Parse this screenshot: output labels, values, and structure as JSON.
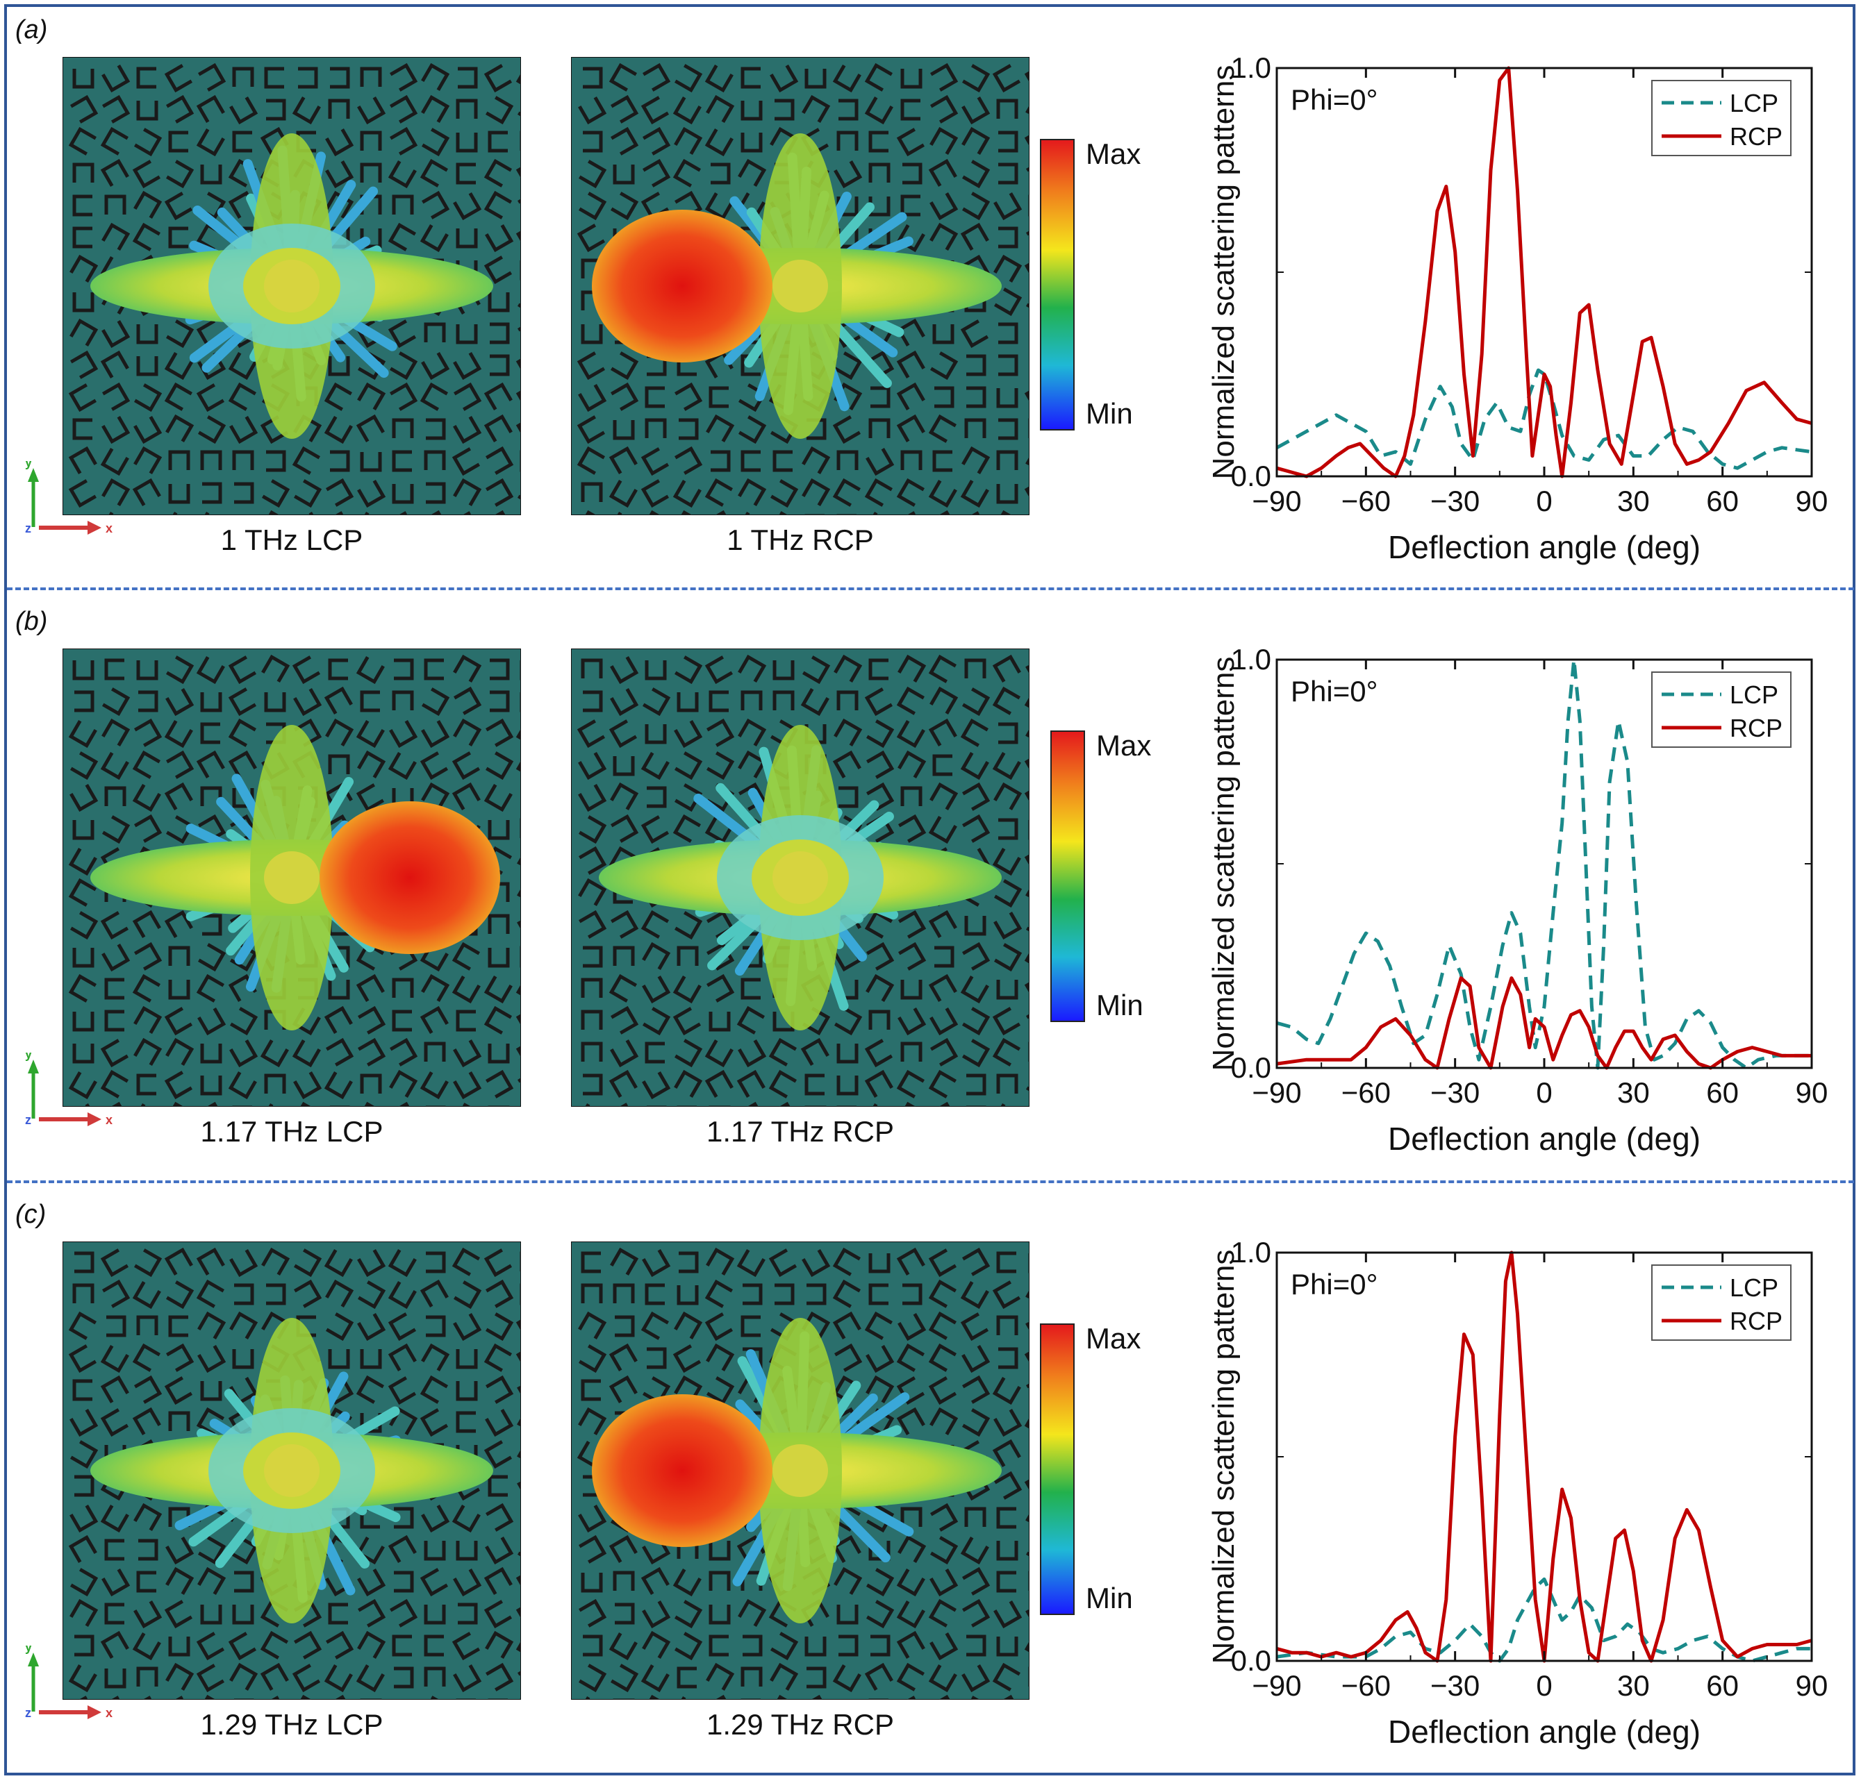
{
  "figure": {
    "panels": [
      {
        "label": "(a)",
        "captions": [
          "1 THz LCP",
          "1 THz RCP"
        ],
        "colorbar": {
          "max_label": "Max",
          "min_label": "Min"
        },
        "axis_triad": {
          "y": "y",
          "z": "z",
          "x": "x"
        }
      },
      {
        "label": "(b)",
        "captions": [
          "1.17 THz LCP",
          "1.17 THz RCP"
        ],
        "colorbar": {
          "max_label": "Max",
          "min_label": "Min"
        },
        "axis_triad": {
          "y": "y",
          "z": "z",
          "x": "x"
        }
      },
      {
        "label": "(c)",
        "captions": [
          "1.29 THz LCP",
          "1.29 THz RCP"
        ],
        "colorbar": {
          "max_label": "Max",
          "min_label": "Min"
        },
        "axis_triad": {
          "y": "y",
          "z": "z",
          "x": "x"
        }
      }
    ],
    "colors": {
      "lcp": "#1a8a8a",
      "rcp": "#c00000",
      "border": "#2f5597",
      "divider": "#4472c4",
      "substrate": "#2a6f6c"
    }
  },
  "chart_data": [
    {
      "type": "line",
      "annotation": "Phi=0°",
      "xlabel": "Deflection angle (deg)",
      "ylabel": "Normalized scattering patterns",
      "xlim": [
        -90,
        90
      ],
      "ylim": [
        0,
        1
      ],
      "xticks": [
        "−90",
        "−60",
        "−30",
        "0",
        "30",
        "60",
        "90"
      ],
      "yticks": [
        "0.0",
        "1.0"
      ],
      "legend": "top-right",
      "series": [
        {
          "name": "LCP",
          "style": "dashed",
          "x": [
            -90,
            -80,
            -70,
            -60,
            -55,
            -50,
            -45,
            -40,
            -35,
            -31,
            -28,
            -24,
            -20,
            -16,
            -12,
            -8,
            -5,
            -2,
            0,
            3,
            6,
            10,
            15,
            20,
            25,
            30,
            35,
            40,
            45,
            50,
            55,
            60,
            65,
            70,
            75,
            80,
            85,
            90
          ],
          "y": [
            0.07,
            0.11,
            0.15,
            0.11,
            0.05,
            0.06,
            0.03,
            0.14,
            0.22,
            0.17,
            0.08,
            0.04,
            0.14,
            0.18,
            0.12,
            0.11,
            0.2,
            0.26,
            0.25,
            0.18,
            0.1,
            0.05,
            0.04,
            0.09,
            0.1,
            0.05,
            0.05,
            0.09,
            0.12,
            0.11,
            0.06,
            0.03,
            0.02,
            0.04,
            0.06,
            0.07,
            0.065,
            0.06
          ]
        },
        {
          "name": "RCP",
          "style": "solid",
          "x": [
            -90,
            -85,
            -80,
            -75,
            -70,
            -66,
            -62,
            -58,
            -54,
            -50,
            -47,
            -44,
            -40,
            -36,
            -33,
            -30,
            -27,
            -24,
            -21,
            -18,
            -15,
            -12,
            -9,
            -6,
            -4,
            -2,
            0,
            2,
            4,
            6,
            9,
            12,
            15,
            18,
            22,
            26,
            30,
            33,
            36,
            40,
            44,
            48,
            52,
            56,
            62,
            68,
            74,
            80,
            85,
            90
          ],
          "y": [
            0.02,
            0.01,
            0.0,
            0.02,
            0.05,
            0.07,
            0.08,
            0.05,
            0.02,
            0.0,
            0.05,
            0.15,
            0.38,
            0.65,
            0.71,
            0.55,
            0.25,
            0.05,
            0.3,
            0.75,
            0.97,
            1.0,
            0.7,
            0.3,
            0.05,
            0.15,
            0.25,
            0.22,
            0.1,
            0.0,
            0.18,
            0.4,
            0.42,
            0.26,
            0.08,
            0.03,
            0.2,
            0.33,
            0.34,
            0.22,
            0.08,
            0.03,
            0.04,
            0.06,
            0.13,
            0.21,
            0.23,
            0.18,
            0.14,
            0.13
          ]
        }
      ]
    },
    {
      "type": "line",
      "annotation": "Phi=0°",
      "xlabel": "Deflection angle (deg)",
      "ylabel": "Normalized scattering patterns",
      "xlim": [
        -90,
        90
      ],
      "ylim": [
        0,
        1
      ],
      "xticks": [
        "−90",
        "−60",
        "−30",
        "0",
        "30",
        "60",
        "90"
      ],
      "yticks": [
        "0.0",
        "1.0"
      ],
      "legend": "top-right",
      "series": [
        {
          "name": "LCP",
          "style": "dashed",
          "x": [
            -90,
            -85,
            -80,
            -76,
            -72,
            -68,
            -64,
            -60,
            -56,
            -52,
            -48,
            -44,
            -40,
            -36,
            -32,
            -28,
            -25,
            -22,
            -18,
            -14,
            -11,
            -8,
            -5,
            -3,
            0,
            3,
            6,
            8,
            10,
            12,
            14,
            16,
            18,
            20,
            22,
            25,
            28,
            31,
            34,
            37,
            40,
            44,
            48,
            52,
            56,
            60,
            64,
            68,
            72,
            78,
            84,
            90
          ],
          "y": [
            0.11,
            0.1,
            0.07,
            0.06,
            0.12,
            0.2,
            0.28,
            0.33,
            0.31,
            0.25,
            0.15,
            0.06,
            0.08,
            0.18,
            0.3,
            0.23,
            0.1,
            0.02,
            0.15,
            0.3,
            0.38,
            0.33,
            0.15,
            0.05,
            0.15,
            0.38,
            0.6,
            0.85,
            1.0,
            0.85,
            0.5,
            0.15,
            0.0,
            0.3,
            0.7,
            0.85,
            0.75,
            0.4,
            0.1,
            0.02,
            0.03,
            0.06,
            0.12,
            0.14,
            0.11,
            0.05,
            0.02,
            0.0,
            0.02,
            0.03,
            0.03,
            0.03
          ]
        },
        {
          "name": "RCP",
          "style": "solid",
          "x": [
            -90,
            -80,
            -70,
            -65,
            -60,
            -55,
            -50,
            -45,
            -40,
            -36,
            -32,
            -28,
            -25,
            -22,
            -18,
            -14,
            -11,
            -8,
            -5,
            -3,
            0,
            3,
            6,
            9,
            12,
            15,
            18,
            21,
            24,
            27,
            30,
            33,
            36,
            40,
            44,
            48,
            52,
            56,
            60,
            65,
            70,
            75,
            80,
            85,
            90
          ],
          "y": [
            0.01,
            0.02,
            0.02,
            0.02,
            0.05,
            0.1,
            0.12,
            0.08,
            0.02,
            0.0,
            0.12,
            0.22,
            0.2,
            0.05,
            0.0,
            0.15,
            0.22,
            0.18,
            0.05,
            0.12,
            0.1,
            0.02,
            0.08,
            0.13,
            0.14,
            0.1,
            0.03,
            0.0,
            0.05,
            0.09,
            0.09,
            0.05,
            0.02,
            0.07,
            0.08,
            0.04,
            0.01,
            0.0,
            0.02,
            0.04,
            0.05,
            0.04,
            0.03,
            0.03,
            0.03
          ]
        }
      ]
    },
    {
      "type": "line",
      "annotation": "Phi=0°",
      "xlabel": "Deflection angle (deg)",
      "ylabel": "Normalized scattering patterns",
      "xlim": [
        -90,
        90
      ],
      "ylim": [
        0,
        1
      ],
      "xticks": [
        "−90",
        "−60",
        "−30",
        "0",
        "30",
        "60",
        "90"
      ],
      "yticks": [
        "0.0",
        "1.0"
      ],
      "legend": "top-right",
      "series": [
        {
          "name": "LCP",
          "style": "dashed",
          "x": [
            -90,
            -80,
            -70,
            -60,
            -55,
            -50,
            -45,
            -40,
            -35,
            -30,
            -25,
            -21,
            -18,
            -15,
            -12,
            -9,
            -6,
            -3,
            0,
            3,
            6,
            9,
            12,
            16,
            20,
            24,
            28,
            32,
            36,
            40,
            45,
            50,
            55,
            60,
            65,
            70,
            75,
            80,
            85,
            90
          ],
          "y": [
            0.01,
            0.02,
            0.01,
            0.01,
            0.03,
            0.06,
            0.07,
            0.03,
            0.02,
            0.05,
            0.09,
            0.06,
            0.02,
            0.0,
            0.03,
            0.1,
            0.14,
            0.18,
            0.2,
            0.15,
            0.1,
            0.12,
            0.16,
            0.13,
            0.05,
            0.06,
            0.09,
            0.07,
            0.03,
            0.02,
            0.03,
            0.05,
            0.06,
            0.03,
            0.01,
            0.0,
            0.01,
            0.02,
            0.03,
            0.03
          ]
        },
        {
          "name": "RCP",
          "style": "solid",
          "x": [
            -90,
            -85,
            -80,
            -75,
            -70,
            -65,
            -60,
            -55,
            -50,
            -46,
            -43,
            -40,
            -36,
            -33,
            -30,
            -27,
            -24,
            -21,
            -18,
            -15,
            -13,
            -11,
            -9,
            -6,
            -3,
            0,
            3,
            6,
            9,
            12,
            15,
            18,
            21,
            24,
            27,
            30,
            33,
            36,
            40,
            44,
            48,
            52,
            56,
            60,
            65,
            70,
            75,
            80,
            85,
            90
          ],
          "y": [
            0.03,
            0.02,
            0.02,
            0.01,
            0.02,
            0.01,
            0.02,
            0.05,
            0.1,
            0.12,
            0.08,
            0.02,
            0.0,
            0.15,
            0.55,
            0.8,
            0.75,
            0.4,
            0.0,
            0.6,
            0.93,
            1.0,
            0.85,
            0.5,
            0.15,
            0.0,
            0.25,
            0.42,
            0.35,
            0.15,
            0.02,
            0.0,
            0.15,
            0.3,
            0.32,
            0.22,
            0.05,
            0.0,
            0.1,
            0.3,
            0.37,
            0.32,
            0.18,
            0.05,
            0.01,
            0.03,
            0.04,
            0.04,
            0.04,
            0.05
          ]
        }
      ]
    }
  ]
}
